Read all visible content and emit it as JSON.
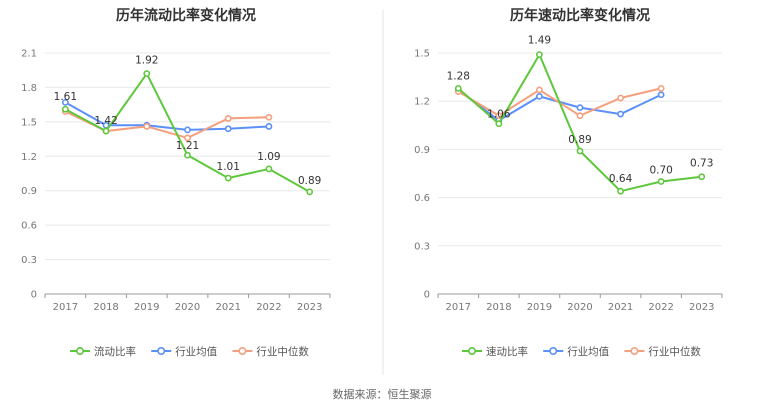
{
  "source": "数据来源：恒生聚源",
  "colors": {
    "company": "#5ec73c",
    "industry_avg": "#5b8ff9",
    "industry_median": "#f4a07f"
  },
  "chart_data": [
    {
      "type": "line",
      "title": "历年流动比率变化情况",
      "categories": [
        "2017",
        "2018",
        "2019",
        "2020",
        "2021",
        "2022",
        "2023"
      ],
      "ylim": [
        0,
        2.1
      ],
      "yticks": [
        "0",
        "0.3",
        "0.6",
        "0.9",
        "1.2",
        "1.5",
        "1.8",
        "2.1"
      ],
      "grid": true,
      "legend_position": "bottom",
      "series": [
        {
          "name": "流动比率",
          "key": "company",
          "values": [
            1.61,
            1.42,
            1.92,
            1.21,
            1.01,
            1.09,
            0.89
          ],
          "labels": [
            "1.61",
            "1.42",
            "1.92",
            "1.21",
            "1.01",
            "1.09",
            "0.89"
          ]
        },
        {
          "name": "行业均值",
          "key": "industry_avg",
          "values": [
            1.67,
            1.47,
            1.47,
            1.43,
            1.44,
            1.46,
            null
          ],
          "labels": []
        },
        {
          "name": "行业中位数",
          "key": "industry_median",
          "values": [
            1.59,
            1.42,
            1.46,
            1.36,
            1.53,
            1.54,
            null
          ],
          "labels": []
        }
      ]
    },
    {
      "type": "line",
      "title": "历年速动比率变化情况",
      "categories": [
        "2017",
        "2018",
        "2019",
        "2020",
        "2021",
        "2022",
        "2023"
      ],
      "ylim": [
        0,
        1.5
      ],
      "yticks": [
        "0",
        "0.3",
        "0.6",
        "0.9",
        "1.2",
        "1.5"
      ],
      "grid": true,
      "legend_position": "bottom",
      "series": [
        {
          "name": "速动比率",
          "key": "company",
          "values": [
            1.28,
            1.06,
            1.49,
            0.89,
            0.64,
            0.7,
            0.73
          ],
          "labels": [
            "1.28",
            "1.06",
            "1.49",
            "0.89",
            "0.64",
            "0.70",
            "0.73"
          ]
        },
        {
          "name": "行业均值",
          "key": "industry_avg",
          "values": [
            1.27,
            1.08,
            1.23,
            1.16,
            1.12,
            1.24,
            null
          ],
          "labels": []
        },
        {
          "name": "行业中位数",
          "key": "industry_median",
          "values": [
            1.26,
            1.11,
            1.27,
            1.11,
            1.22,
            1.28,
            null
          ],
          "labels": []
        }
      ]
    }
  ]
}
